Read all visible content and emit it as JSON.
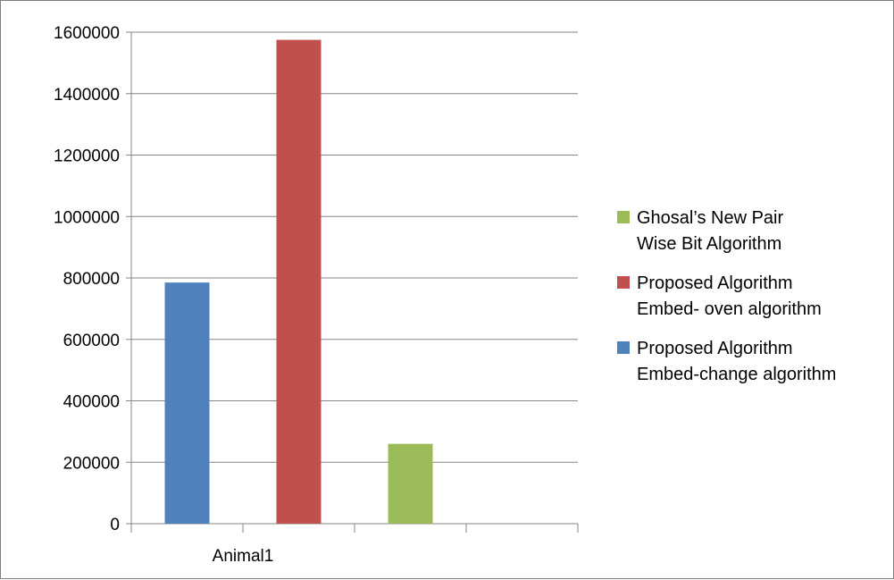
{
  "chart_data": {
    "type": "bar",
    "title": "",
    "xlabel": "",
    "ylabel": "",
    "categories": [
      "Animal1",
      ""
    ],
    "ylim": [
      0,
      1600000
    ],
    "yticks": [
      0,
      200000,
      400000,
      600000,
      800000,
      1000000,
      1200000,
      1400000,
      1600000
    ],
    "ytick_labels": [
      "0",
      "200000",
      "400000",
      "600000",
      "800000",
      "1000000",
      "1200000",
      "1400000",
      "1600000"
    ],
    "grid": true,
    "legend_position": "right",
    "series": [
      {
        "name": "Proposed Algorithm Embed-change algorithm",
        "legend_lines": [
          "Proposed Algorithm",
          "Embed-change algorithm"
        ],
        "color": "#4f81bd",
        "values": [
          785000,
          null
        ]
      },
      {
        "name": "Proposed Algorithm Embed- oven algorithm",
        "legend_lines": [
          "Proposed Algorithm",
          "Embed- oven algorithm"
        ],
        "color": "#c0504d",
        "values": [
          1575000,
          null
        ]
      },
      {
        "name": "Ghosal’s New Pair Wise Bit Algorithm",
        "legend_lines": [
          "Ghosal’s New Pair",
          "Wise Bit Algorithm"
        ],
        "color": "#9bbb59",
        "values": [
          260000,
          null
        ]
      }
    ],
    "legend_order": [
      2,
      1,
      0
    ]
  }
}
